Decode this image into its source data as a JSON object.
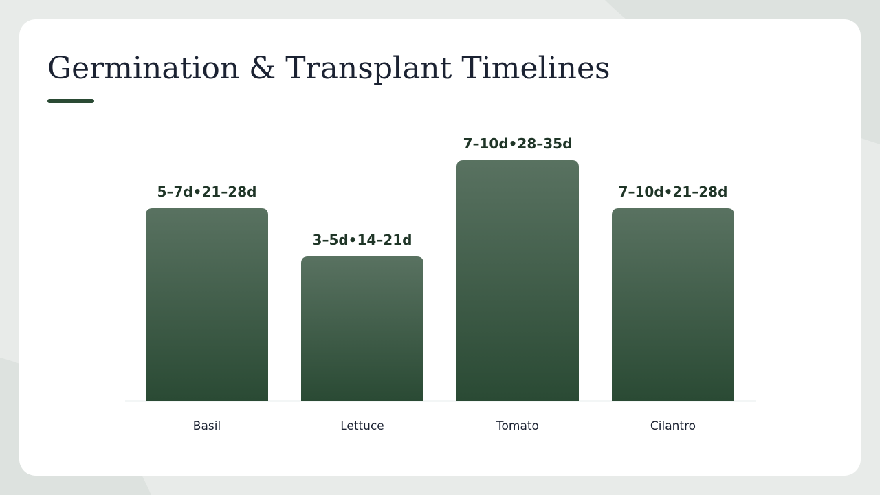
{
  "chart_data": {
    "type": "bar",
    "title": "Germination & Transplant Timelines",
    "categories": [
      "Basil",
      "Lettuce",
      "Tomato",
      "Cilantro"
    ],
    "values": [
      28,
      21,
      35,
      28
    ],
    "value_labels": [
      "5–7d•21–28d",
      "3–5d•14–21d",
      "7–10d•28–35d",
      "7–10d•21–28d"
    ],
    "color": "#2a4a34",
    "ylim": [
      0,
      35
    ]
  }
}
